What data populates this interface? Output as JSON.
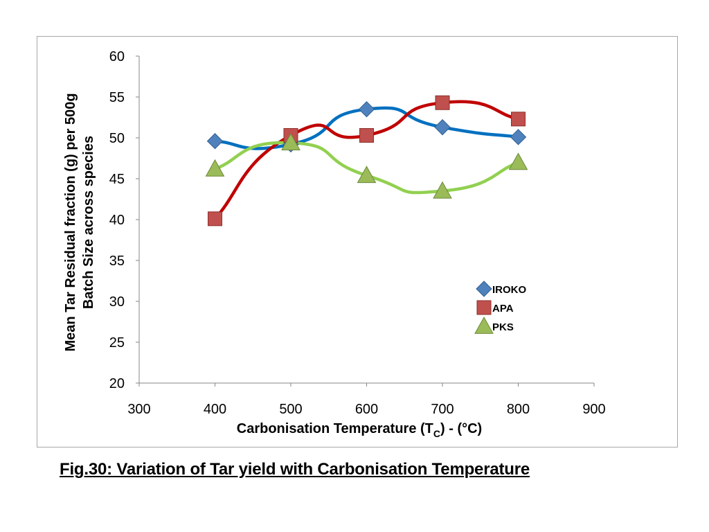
{
  "caption": "Fig.30: Variation of Tar yield with Carbonisation Temperature",
  "chart_data": {
    "type": "scatter",
    "title": "",
    "xlabel_main": "Carbonisation Temperature (T",
    "xlabel_sub": "C",
    "xlabel_tail": ") - (°C)",
    "ylabel_line1": "Mean Tar Residual fraction (g) per 500g",
    "ylabel_line2": "Batch Size across species",
    "xlim": [
      300,
      900
    ],
    "ylim": [
      20,
      60
    ],
    "xticks": [
      300,
      400,
      500,
      600,
      700,
      800,
      900
    ],
    "yticks": [
      20,
      25,
      30,
      35,
      40,
      45,
      50,
      55,
      60
    ],
    "grid": false,
    "smoothed_lines": true,
    "legend_position": "right-middle",
    "series": [
      {
        "name": "IROKO",
        "marker": "diamond",
        "color": "#0070c0",
        "marker_color": "#4f81bd",
        "x": [
          400,
          500,
          600,
          700,
          800
        ],
        "y": [
          49.6,
          49.2,
          53.5,
          51.3,
          50.1
        ]
      },
      {
        "name": "APA",
        "marker": "square",
        "color": "#c00000",
        "marker_color": "#c0504d",
        "x": [
          400,
          500,
          600,
          700,
          800
        ],
        "y": [
          40.1,
          50.3,
          50.3,
          54.3,
          52.3
        ]
      },
      {
        "name": "PKS",
        "marker": "triangle",
        "color": "#92d050",
        "marker_color": "#9bbb59",
        "x": [
          400,
          500,
          600,
          700,
          800
        ],
        "y": [
          46.2,
          49.4,
          45.4,
          43.5,
          47.0
        ]
      }
    ]
  }
}
